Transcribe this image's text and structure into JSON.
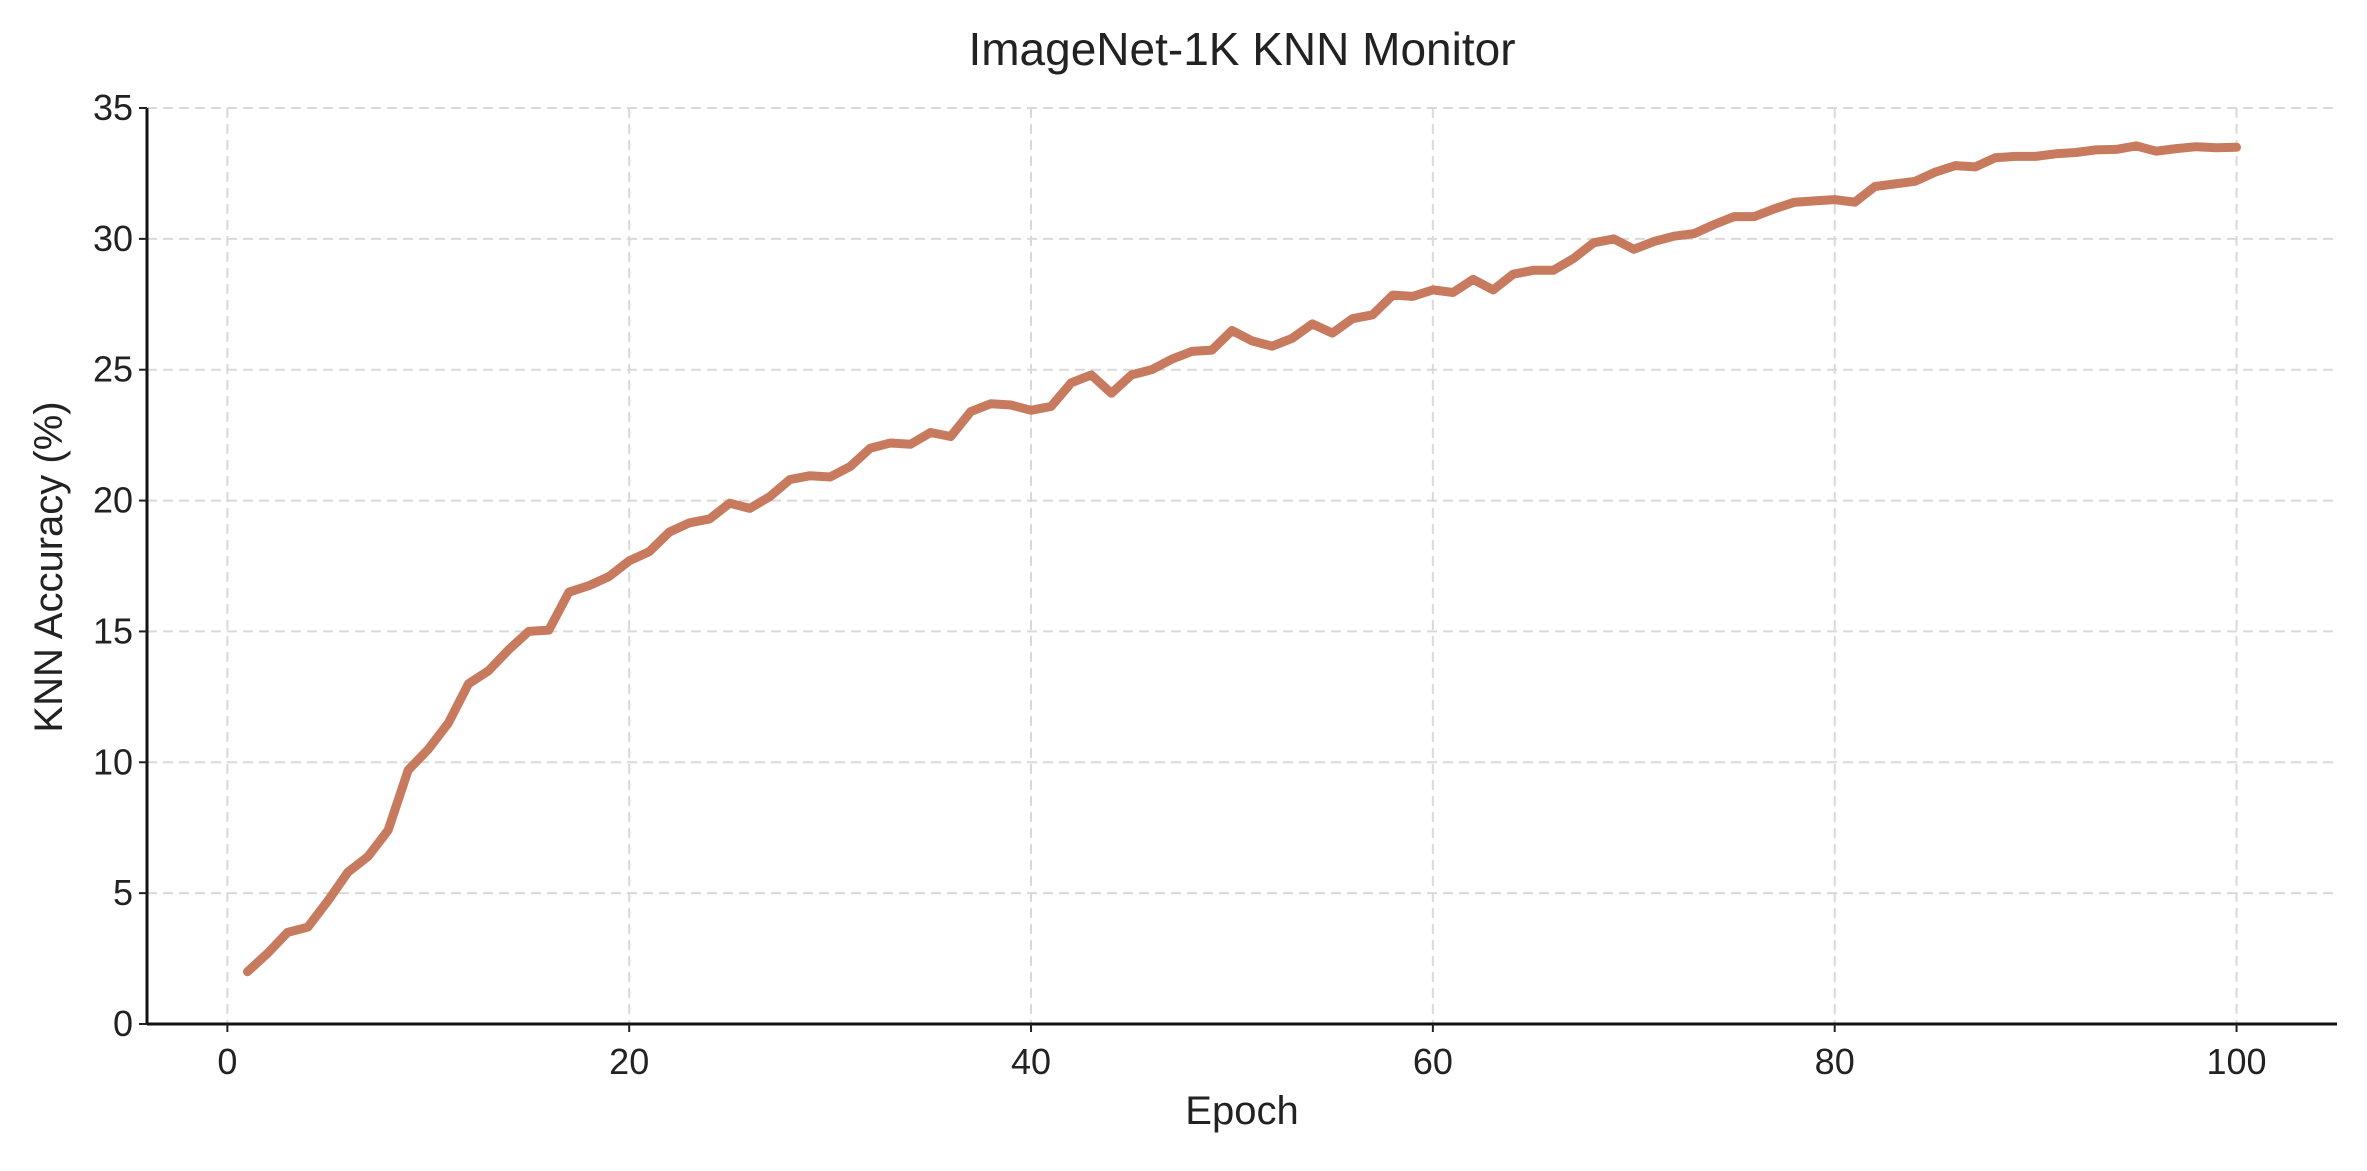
{
  "chart_data": {
    "type": "line",
    "title": "ImageNet-1K KNN Monitor",
    "xlabel": "Epoch",
    "ylabel": "KNN Accuracy (%)",
    "xlim": [
      -4,
      105
    ],
    "ylim": [
      0,
      35
    ],
    "xticks": [
      0,
      20,
      40,
      60,
      80,
      100
    ],
    "yticks": [
      0,
      5,
      10,
      15,
      20,
      25,
      30,
      35
    ],
    "grid": true,
    "line_color": "#c87a5e",
    "series": [
      {
        "x": [
          1,
          2,
          3,
          4,
          5,
          6,
          7,
          8,
          9,
          10,
          11,
          12,
          13,
          14,
          15,
          16,
          17,
          18,
          19,
          20,
          21,
          22,
          23,
          24,
          25,
          26,
          27,
          28,
          29,
          30,
          31,
          32,
          33,
          34,
          35,
          36,
          37,
          38,
          39,
          40,
          41,
          42,
          43,
          44,
          45,
          46,
          47,
          48,
          49,
          50,
          51,
          52,
          53,
          54,
          55,
          56,
          57,
          58,
          59,
          60,
          61,
          62,
          63,
          64,
          65,
          66,
          67,
          68,
          69,
          70,
          71,
          72,
          73,
          74,
          75,
          76,
          77,
          78,
          79,
          80,
          81,
          82,
          83,
          84,
          85,
          86,
          87,
          88,
          89,
          90,
          91,
          92,
          93,
          94,
          95,
          96,
          97,
          98,
          99,
          100
        ],
        "values": [
          2.0,
          2.7,
          3.5,
          3.7,
          4.7,
          5.8,
          6.4,
          7.4,
          9.7,
          10.5,
          11.5,
          13.0,
          13.5,
          14.3,
          15.0,
          15.05,
          16.5,
          16.75,
          17.1,
          17.7,
          18.05,
          18.8,
          19.15,
          19.3,
          19.9,
          19.7,
          20.15,
          20.8,
          20.95,
          20.9,
          21.3,
          22.0,
          22.2,
          22.15,
          22.6,
          22.45,
          23.4,
          23.7,
          23.65,
          23.45,
          23.6,
          24.5,
          24.8,
          24.1,
          24.8,
          25.0,
          25.4,
          25.7,
          25.75,
          26.5,
          26.1,
          25.9,
          26.2,
          26.75,
          26.4,
          26.95,
          27.1,
          27.85,
          27.8,
          28.05,
          27.95,
          28.45,
          28.05,
          28.65,
          28.8,
          28.8,
          29.25,
          29.85,
          30.0,
          29.6,
          29.9,
          30.1,
          30.2,
          30.55,
          30.85,
          30.85,
          31.15,
          31.4,
          31.45,
          31.5,
          31.4,
          32.0,
          32.1,
          32.2,
          32.55,
          32.8,
          32.75,
          33.1,
          33.15,
          33.15,
          33.25,
          33.3,
          33.4,
          33.42,
          33.55,
          33.35,
          33.45,
          33.52,
          33.48,
          33.5
        ]
      }
    ]
  }
}
